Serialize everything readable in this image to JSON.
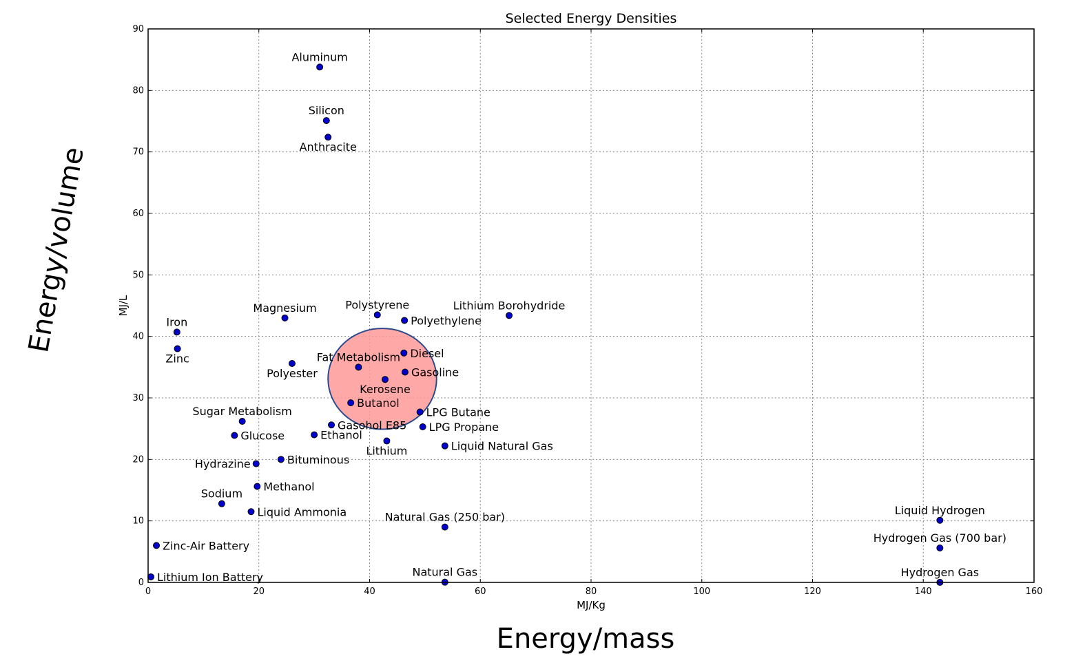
{
  "colors": {
    "marker": "#0000cc",
    "marker_edge": "#000000",
    "highlight_fill": "#ff9999",
    "highlight_stroke": "#2d4b8c"
  },
  "annotations": {
    "energy_per_volume": "Energy/volume",
    "energy_per_mass": "Energy/mass"
  },
  "chart_data": {
    "type": "scatter",
    "title": "Selected Energy Densities",
    "xlabel": "MJ/Kg",
    "ylabel": "MJ/L",
    "xlim": [
      0,
      160
    ],
    "ylim": [
      0,
      90
    ],
    "xticks": [
      0,
      20,
      40,
      60,
      80,
      100,
      120,
      140,
      160
    ],
    "yticks": [
      0,
      10,
      20,
      30,
      40,
      50,
      60,
      70,
      80,
      90
    ],
    "grid": true,
    "highlight": {
      "shape": "ellipse",
      "center": [
        42.3,
        33.1
      ],
      "semi_axes": [
        9.8,
        8.2
      ]
    },
    "points": [
      {
        "name": "Aluminum",
        "x": 31.0,
        "y": 83.8,
        "label_pos": "above"
      },
      {
        "name": "Silicon",
        "x": 32.2,
        "y": 75.1,
        "label_pos": "above"
      },
      {
        "name": "Anthracite",
        "x": 32.5,
        "y": 72.4,
        "label_pos": "below"
      },
      {
        "name": "Magnesium",
        "x": 24.7,
        "y": 43.0,
        "label_pos": "above"
      },
      {
        "name": "Polystyrene",
        "x": 41.4,
        "y": 43.5,
        "label_pos": "above"
      },
      {
        "name": "Polyethylene",
        "x": 46.3,
        "y": 42.6,
        "label_pos": "right"
      },
      {
        "name": "Lithium Borohydride",
        "x": 65.2,
        "y": 43.4,
        "label_pos": "above"
      },
      {
        "name": "Iron",
        "x": 5.2,
        "y": 40.7,
        "label_pos": "above"
      },
      {
        "name": "Zinc",
        "x": 5.3,
        "y": 38.0,
        "label_pos": "below"
      },
      {
        "name": "Polyester",
        "x": 26.0,
        "y": 35.6,
        "label_pos": "below"
      },
      {
        "name": "Fat Metabolism",
        "x": 38.0,
        "y": 35.0,
        "label_pos": "above"
      },
      {
        "name": "Diesel",
        "x": 46.2,
        "y": 37.3,
        "label_pos": "right"
      },
      {
        "name": "Gasoline",
        "x": 46.4,
        "y": 34.2,
        "label_pos": "right"
      },
      {
        "name": "Kerosene",
        "x": 42.8,
        "y": 33.0,
        "label_pos": "below"
      },
      {
        "name": "Butanol",
        "x": 36.6,
        "y": 29.2,
        "label_pos": "right"
      },
      {
        "name": "LPG Butane",
        "x": 49.1,
        "y": 27.7,
        "label_pos": "right"
      },
      {
        "name": "Sugar Metabolism",
        "x": 17.0,
        "y": 26.2,
        "label_pos": "above"
      },
      {
        "name": "Gasohol E85",
        "x": 33.1,
        "y": 25.6,
        "label_pos": "right"
      },
      {
        "name": "LPG Propane",
        "x": 49.6,
        "y": 25.3,
        "label_pos": "right"
      },
      {
        "name": "Glucose",
        "x": 15.6,
        "y": 23.9,
        "label_pos": "right"
      },
      {
        "name": "Ethanol",
        "x": 30.0,
        "y": 24.0,
        "label_pos": "right"
      },
      {
        "name": "Lithium",
        "x": 43.1,
        "y": 23.0,
        "label_pos": "below"
      },
      {
        "name": "Liquid Natural Gas",
        "x": 53.6,
        "y": 22.2,
        "label_pos": "right"
      },
      {
        "name": "Bituminous",
        "x": 24.0,
        "y": 20.0,
        "label_pos": "right"
      },
      {
        "name": "Hydrazine",
        "x": 19.5,
        "y": 19.3,
        "label_pos": "left"
      },
      {
        "name": "Methanol",
        "x": 19.7,
        "y": 15.6,
        "label_pos": "right"
      },
      {
        "name": "Sodium",
        "x": 13.3,
        "y": 12.8,
        "label_pos": "above"
      },
      {
        "name": "Liquid Ammonia",
        "x": 18.6,
        "y": 11.5,
        "label_pos": "right"
      },
      {
        "name": "Natural Gas (250 bar)",
        "x": 53.6,
        "y": 9.0,
        "label_pos": "above"
      },
      {
        "name": "Liquid Hydrogen",
        "x": 143.0,
        "y": 10.1,
        "label_pos": "above"
      },
      {
        "name": "Hydrogen Gas (700 bar)",
        "x": 143.0,
        "y": 5.6,
        "label_pos": "above"
      },
      {
        "name": "Zinc-Air Battery",
        "x": 1.5,
        "y": 6.0,
        "label_pos": "right"
      },
      {
        "name": "Lithium Ion Battery",
        "x": 0.5,
        "y": 0.9,
        "label_pos": "right"
      },
      {
        "name": "Natural Gas",
        "x": 53.6,
        "y": 0.036,
        "label_pos": "above"
      },
      {
        "name": "Hydrogen Gas",
        "x": 143.0,
        "y": 0.01,
        "label_pos": "above"
      }
    ]
  }
}
